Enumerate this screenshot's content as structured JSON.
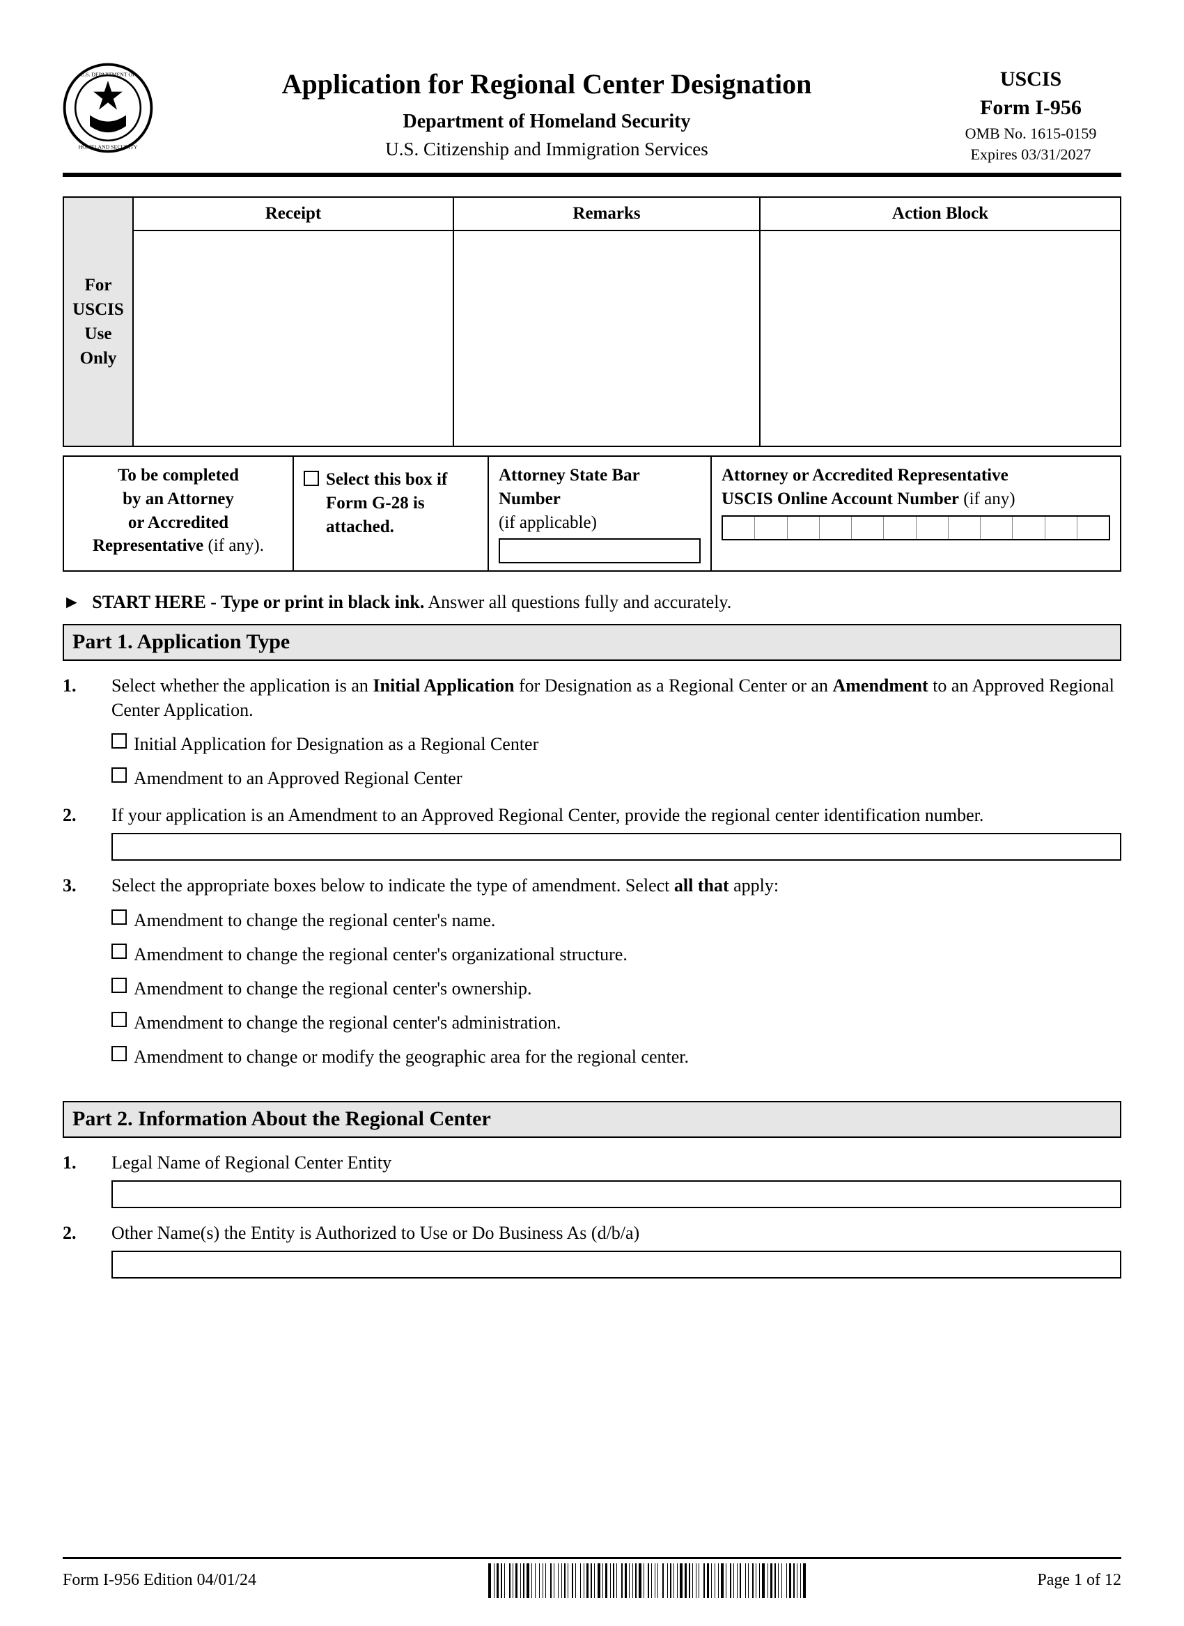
{
  "header": {
    "title": "Application for Regional Center Designation",
    "dept": "Department of Homeland Security",
    "agency": "U.S. Citizenship and Immigration Services",
    "form_org": "USCIS",
    "form_no": "Form I-956",
    "omb": "OMB No. 1615-0159",
    "expires": "Expires 03/31/2027"
  },
  "uscis_box": {
    "left_label_l1": "For",
    "left_label_l2": "USCIS",
    "left_label_l3": "Use",
    "left_label_l4": "Only",
    "col1": "Receipt",
    "col2": "Remarks",
    "col3": "Action Block"
  },
  "attorney": {
    "c1_l1": "To be completed",
    "c1_l2": "by an Attorney",
    "c1_l3": "or Accredited",
    "c1_l4_bold": "Representative",
    "c1_l4_rest": " (if any).",
    "c2_l1": "Select this box if",
    "c2_l2": "Form G-28 is",
    "c2_l3": "attached.",
    "c3_l1": "Attorney State Bar Number",
    "c3_l2": "(if applicable)",
    "c4_l1": "Attorney or Accredited Representative",
    "c4_l2_bold": "USCIS Online Account Number",
    "c4_l2_rest": " (if any)"
  },
  "start": {
    "arrow": "►",
    "bold": "START HERE - Type or print in black ink.",
    "rest": "  Answer all questions fully and accurately."
  },
  "part1": {
    "title": "Part 1.  Application Type",
    "q1_pre": "Select whether the application is an ",
    "q1_b1": "Initial Application",
    "q1_mid": " for Designation as a Regional Center or an ",
    "q1_b2": "Amendment",
    "q1_post": " to an Approved Regional Center Application.",
    "q1_opt1": "Initial Application for Designation as a Regional Center",
    "q1_opt2": "Amendment to an Approved Regional Center",
    "q2": "If your application is an Amendment to an Approved Regional Center, provide the regional center identification number.",
    "q3_pre": "Select the appropriate boxes below to indicate the type of amendment.  Select ",
    "q3_b": "all that",
    "q3_post": " apply:",
    "q3_opts": [
      "Amendment to change the regional center's name.",
      "Amendment to change the regional center's organizational structure.",
      "Amendment to change the regional center's ownership.",
      "Amendment to change the regional center's administration.",
      "Amendment to change or modify the geographic area for the regional center."
    ]
  },
  "part2": {
    "title": "Part 2.  Information About the Regional Center",
    "q1": "Legal Name of Regional Center Entity",
    "q2": "Other Name(s) the Entity is Authorized to Use or Do Business As (d/b/a)"
  },
  "footer": {
    "left": "Form I-956   Edition   04/01/24",
    "right": "Page 1 of 12"
  }
}
